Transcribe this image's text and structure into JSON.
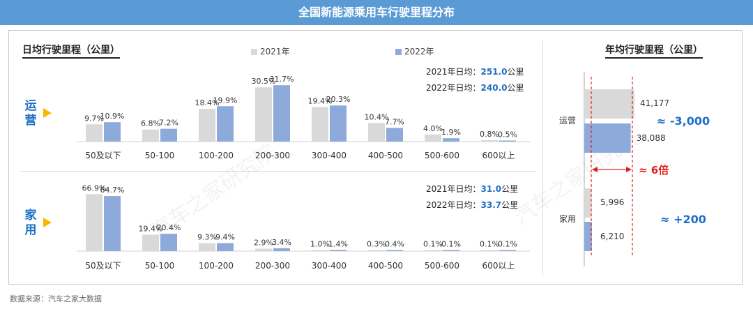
{
  "banner_title": "全国新能源乘用车行驶里程分布",
  "left_section_title": "日均行驶里程（公里）",
  "right_section_title": "年均行驶里程（公里）",
  "legend": {
    "y2021": "2021年",
    "y2022": "2022年"
  },
  "colors": {
    "y2021": "#d9d9d9",
    "y2022": "#8eaadb",
    "accent_blue": "#1f6fc5",
    "accent_red": "#e02020",
    "banner": "#5b9bd5",
    "arrow": "#f5b800"
  },
  "segments": {
    "operating": {
      "label_line1": "运",
      "label_line2": "营"
    },
    "household": {
      "label_line1": "家",
      "label_line2": "用"
    }
  },
  "averages": {
    "operating": [
      {
        "label": "2021年日均：",
        "value": "251.0",
        "unit": "公里"
      },
      {
        "label": "2022年日均：",
        "value": "240.0",
        "unit": "公里"
      }
    ],
    "household": [
      {
        "label": "2021年日均：",
        "value": "31.0",
        "unit": "公里"
      },
      {
        "label": "2022年日均：",
        "value": "33.7",
        "unit": "公里"
      }
    ]
  },
  "annotations": {
    "operating_diff": "≈ -3,000",
    "ratio": "≈  6倍",
    "household_diff": "≈  +200"
  },
  "source_note": "数据来源：汽车之家大数据",
  "watermark": "汽车之家研究院",
  "chart_data": [
    {
      "type": "bar",
      "segment": "运营",
      "categories": [
        "50及以下",
        "50-100",
        "100-200",
        "200-300",
        "300-400",
        "400-500",
        "500-600",
        "600以上"
      ],
      "series": [
        {
          "name": "2021年",
          "values": [
            9.7,
            6.8,
            18.4,
            30.5,
            19.4,
            10.4,
            4.0,
            0.8
          ],
          "labels": [
            "9.7%",
            "6.8%",
            "18.4%",
            "30.5%",
            "19.4%",
            "10.4%",
            "4.0%",
            "0.8%"
          ]
        },
        {
          "name": "2022年",
          "values": [
            10.9,
            7.2,
            19.9,
            31.7,
            20.3,
            7.7,
            1.9,
            0.5
          ],
          "labels": [
            "10.9%",
            "7.2%",
            "19.9%",
            "31.7%",
            "20.3%",
            "7.7%",
            "1.9%",
            "0.5%"
          ]
        }
      ]
    },
    {
      "type": "bar",
      "segment": "家用",
      "categories": [
        "50及以下",
        "50-100",
        "100-200",
        "200-300",
        "300-400",
        "400-500",
        "500-600",
        "600以上"
      ],
      "series": [
        {
          "name": "2021年",
          "values": [
            66.9,
            19.4,
            9.3,
            2.9,
            1.0,
            0.3,
            0.1,
            0.1
          ],
          "labels": [
            "66.9%",
            "19.4%",
            "9.3%",
            "2.9%",
            "1.0%",
            "0.3%",
            "0.1%",
            "0.1%"
          ]
        },
        {
          "name": "2022年",
          "values": [
            64.7,
            20.4,
            9.4,
            3.4,
            1.4,
            0.4,
            0.1,
            0.1
          ],
          "labels": [
            "64.7%",
            "20.4%",
            "9.4%",
            "3.4%",
            "1.4%",
            "0.4%",
            "0.1%",
            "0.1%"
          ]
        }
      ]
    },
    {
      "type": "bar",
      "orientation": "horizontal",
      "categories": [
        "运营",
        "家用"
      ],
      "series": [
        {
          "name": "2021年",
          "values": [
            41177,
            5996
          ],
          "labels": [
            "41,177",
            "5,996"
          ]
        },
        {
          "name": "2022年",
          "values": [
            38088,
            6210
          ],
          "labels": [
            "38,088",
            "6,210"
          ]
        }
      ]
    }
  ]
}
